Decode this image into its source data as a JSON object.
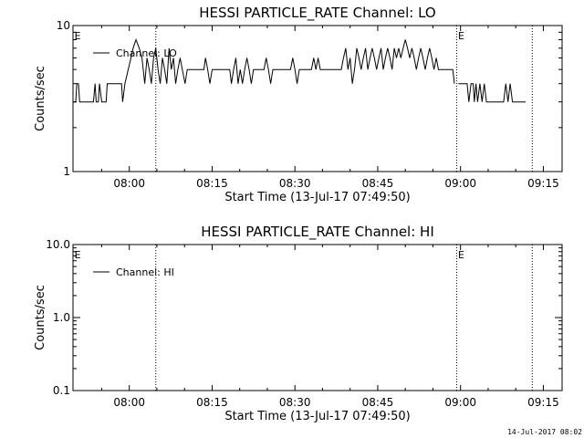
{
  "footer": {
    "timestamp": "14-Jul-2017 08:02"
  },
  "chart_data": [
    {
      "type": "line",
      "title": "HESSI PARTICLE_RATE Channel: LO",
      "xlabel": "Start Time (13-Jul-17 07:49:50)",
      "ylabel": "Counts/sec",
      "scale": "log",
      "ylim": [
        1,
        10
      ],
      "yticks": [
        {
          "v": 1,
          "label": "1"
        },
        {
          "v": 10,
          "label": "10"
        }
      ],
      "xlim_min": [
        49.8,
        138.4
      ],
      "xticks": [
        {
          "m": 60,
          "label": "08:00"
        },
        {
          "m": 75,
          "label": "08:15"
        },
        {
          "m": 90,
          "label": "08:30"
        },
        {
          "m": 105,
          "label": "08:45"
        },
        {
          "m": 120,
          "label": "09:00"
        },
        {
          "m": 135,
          "label": "09:15"
        }
      ],
      "vlines_min": [
        64.8,
        119.3,
        133.0
      ],
      "markers": [
        {
          "m": 49.9,
          "label": "E"
        },
        {
          "m": 119.4,
          "label": "E"
        }
      ],
      "legend": "top-left",
      "series": [
        {
          "name": "Channel: LO",
          "segments": [
            [
              [
                49.8,
                3
              ],
              [
                50.3,
                3
              ],
              [
                50.5,
                4
              ],
              [
                50.8,
                4
              ],
              [
                51.0,
                3
              ],
              [
                53.5,
                3
              ],
              [
                53.8,
                4
              ],
              [
                54.0,
                3
              ],
              [
                54.4,
                3
              ],
              [
                54.6,
                4
              ],
              [
                55.0,
                3
              ],
              [
                55.8,
                3
              ],
              [
                56.0,
                4
              ],
              [
                58.6,
                4
              ],
              [
                58.8,
                3
              ],
              [
                59.2,
                4
              ],
              [
                59.8,
                5
              ],
              [
                60.3,
                6
              ],
              [
                60.7,
                7
              ],
              [
                61.2,
                8
              ],
              [
                61.8,
                7
              ],
              [
                62.3,
                6
              ],
              [
                62.8,
                4
              ],
              [
                63.2,
                6
              ],
              [
                63.6,
                5
              ],
              [
                64.0,
                4
              ],
              [
                64.4,
                6
              ],
              [
                64.8,
                7
              ],
              [
                65.2,
                5
              ],
              [
                65.6,
                4
              ],
              [
                66.0,
                6
              ],
              [
                66.4,
                5
              ],
              [
                66.8,
                4
              ],
              [
                67.2,
                7
              ],
              [
                67.6,
                5
              ],
              [
                68.0,
                6
              ],
              [
                68.4,
                4
              ],
              [
                68.8,
                5
              ],
              [
                69.2,
                6
              ],
              [
                69.6,
                5
              ],
              [
                70.1,
                4
              ],
              [
                70.5,
                5
              ],
              [
                73.5,
                5
              ],
              [
                73.8,
                6
              ],
              [
                74.2,
                5
              ],
              [
                74.6,
                4
              ],
              [
                75.0,
                5
              ],
              [
                78.2,
                5
              ],
              [
                78.5,
                4
              ],
              [
                78.9,
                5
              ],
              [
                79.3,
                6
              ],
              [
                79.7,
                4
              ],
              [
                80.1,
                5
              ],
              [
                80.5,
                4
              ],
              [
                80.9,
                5
              ],
              [
                81.3,
                6
              ],
              [
                81.7,
                5
              ],
              [
                82.1,
                4
              ],
              [
                82.5,
                5
              ],
              [
                84.4,
                5
              ],
              [
                84.8,
                6
              ],
              [
                85.2,
                5
              ],
              [
                85.6,
                4
              ],
              [
                86.0,
                5
              ],
              [
                89.2,
                5
              ],
              [
                89.6,
                6
              ],
              [
                90.0,
                5
              ],
              [
                90.4,
                4
              ],
              [
                90.8,
                5
              ],
              [
                93.0,
                5
              ],
              [
                93.4,
                6
              ],
              [
                93.8,
                5
              ],
              [
                94.2,
                6
              ],
              [
                94.6,
                5
              ],
              [
                98.4,
                5
              ],
              [
                98.8,
                6
              ],
              [
                99.2,
                7
              ],
              [
                99.6,
                5
              ],
              [
                100.0,
                6
              ],
              [
                100.4,
                4
              ],
              [
                100.8,
                5
              ],
              [
                101.2,
                7
              ],
              [
                101.6,
                6
              ],
              [
                102.0,
                5
              ],
              [
                102.4,
                6
              ],
              [
                102.8,
                7
              ],
              [
                103.2,
                5
              ],
              [
                103.6,
                6
              ],
              [
                104.0,
                7
              ],
              [
                104.4,
                6
              ],
              [
                104.8,
                5
              ],
              [
                105.2,
                6
              ],
              [
                105.6,
                7
              ],
              [
                106.0,
                5
              ],
              [
                106.4,
                6
              ],
              [
                106.8,
                7
              ],
              [
                107.2,
                6
              ],
              [
                107.6,
                5
              ],
              [
                108.0,
                7
              ],
              [
                108.4,
                6
              ],
              [
                108.8,
                7
              ],
              [
                109.2,
                6
              ],
              [
                109.6,
                7
              ],
              [
                110.0,
                8
              ],
              [
                110.4,
                7
              ],
              [
                110.8,
                6
              ],
              [
                111.2,
                7
              ],
              [
                111.6,
                6
              ],
              [
                112.0,
                5
              ],
              [
                112.4,
                6
              ],
              [
                112.8,
                7
              ],
              [
                113.2,
                6
              ],
              [
                113.6,
                5
              ],
              [
                114.0,
                6
              ],
              [
                114.4,
                7
              ],
              [
                114.8,
                6
              ],
              [
                115.2,
                5
              ],
              [
                115.6,
                6
              ],
              [
                116.0,
                5
              ],
              [
                118.6,
                5
              ],
              [
                118.9,
                4
              ]
            ],
            [
              [
                119.6,
                4
              ],
              [
                121.2,
                4
              ],
              [
                121.5,
                3
              ],
              [
                121.9,
                4
              ],
              [
                122.3,
                4
              ],
              [
                122.5,
                3
              ],
              [
                122.8,
                4
              ],
              [
                123.1,
                3
              ],
              [
                123.5,
                4
              ],
              [
                123.9,
                3
              ],
              [
                124.3,
                4
              ],
              [
                124.7,
                3
              ],
              [
                127.8,
                3
              ],
              [
                128.2,
                4
              ],
              [
                128.6,
                3
              ],
              [
                129.0,
                4
              ],
              [
                129.4,
                3
              ],
              [
                131.8,
                3
              ]
            ]
          ]
        }
      ]
    },
    {
      "type": "line",
      "title": "HESSI PARTICLE_RATE Channel: HI",
      "xlabel": "Start Time (13-Jul-17 07:49:50)",
      "ylabel": "Counts/sec",
      "scale": "log",
      "ylim": [
        0.1,
        10
      ],
      "yticks": [
        {
          "v": 0.1,
          "label": "0.1"
        },
        {
          "v": 1,
          "label": "1.0"
        },
        {
          "v": 10,
          "label": "10.0"
        }
      ],
      "xlim_min": [
        49.8,
        138.4
      ],
      "xticks": [
        {
          "m": 60,
          "label": "08:00"
        },
        {
          "m": 75,
          "label": "08:15"
        },
        {
          "m": 90,
          "label": "08:30"
        },
        {
          "m": 105,
          "label": "08:45"
        },
        {
          "m": 120,
          "label": "09:00"
        },
        {
          "m": 135,
          "label": "09:15"
        }
      ],
      "vlines_min": [
        64.8,
        119.3,
        133.0
      ],
      "markers": [
        {
          "m": 49.9,
          "label": "E"
        },
        {
          "m": 119.4,
          "label": "E"
        }
      ],
      "legend": "top-left",
      "series": [
        {
          "name": "Channel: HI",
          "segments": []
        }
      ]
    }
  ]
}
